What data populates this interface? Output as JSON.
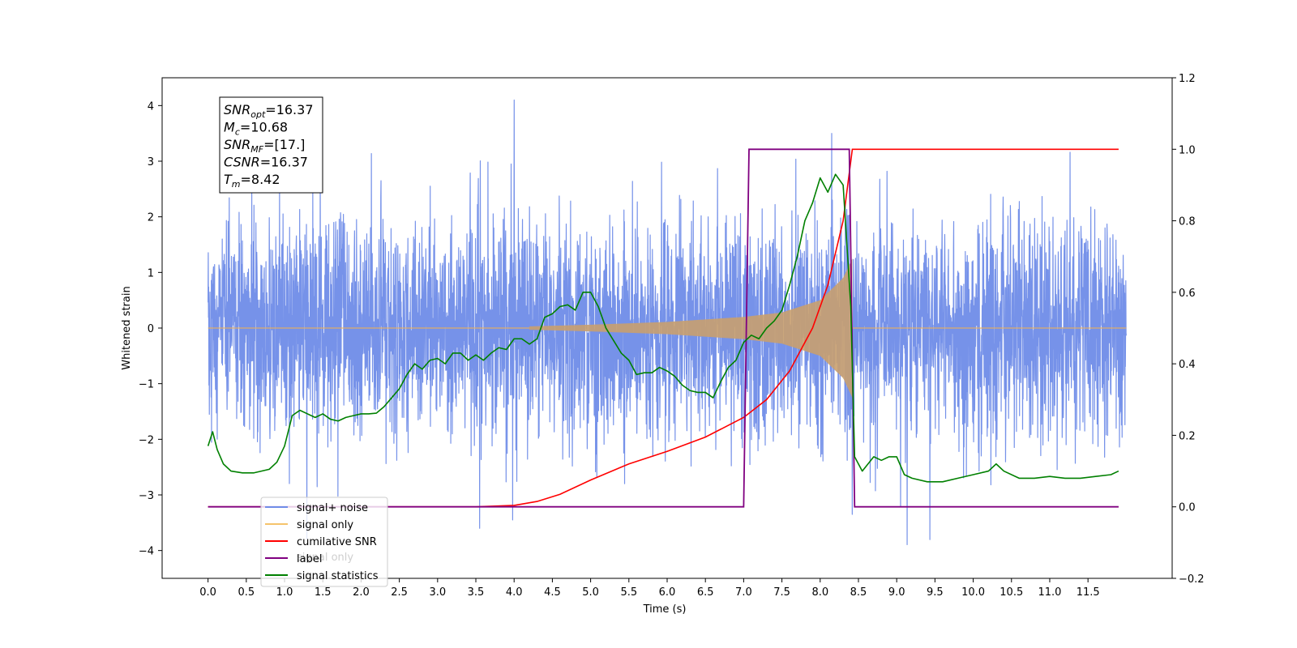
{
  "chart_data": {
    "type": "line",
    "xlabel": "Time (s)",
    "ylabel": "Whitened strain",
    "x_ticks": [
      "0.0",
      "0.5",
      "1.0",
      "1.5",
      "2.0",
      "2.5",
      "3.0",
      "3.5",
      "4.0",
      "4.5",
      "5.0",
      "5.5",
      "6.0",
      "6.5",
      "7.0",
      "7.5",
      "8.0",
      "8.5",
      "9.0",
      "9.5",
      "10.0",
      "10.5",
      "11.0",
      "11.5"
    ],
    "xlim": [
      -0.6,
      12.6
    ],
    "ylim_left": [
      -4.5,
      4.5
    ],
    "y_ticks_left": [
      "−4",
      "−3",
      "−2",
      "−1",
      "0",
      "1",
      "2",
      "3",
      "4"
    ],
    "ylim_right": [
      -0.2,
      1.2
    ],
    "y_ticks_right": [
      "−0.2",
      "0.0",
      "0.2",
      "0.4",
      "0.6",
      "0.8",
      "1.0",
      "1.2"
    ],
    "grid": false,
    "legend_placement": "lower-left",
    "annotation": {
      "lines": [
        {
          "main": "SNR",
          "sub": "opt",
          "rest": "=16.37"
        },
        {
          "main": "M",
          "sub": "c",
          "rest": "=10.68"
        },
        {
          "main": "SNR",
          "sub": "MF",
          "rest": "=[17.]"
        },
        {
          "main": "CSNR",
          "sub": "",
          "rest": "=16.37"
        },
        {
          "main": "T",
          "sub": "m",
          "rest": "=8.42"
        }
      ]
    },
    "series": [
      {
        "name": "signal+ noise",
        "axis": "left",
        "color": "#6f8ce8",
        "x_range": [
          0.0,
          12.0
        ],
        "noise_std": 0.95,
        "annotated_peaks": [
          {
            "x": 4.0,
            "y": 4.1
          },
          {
            "x": 8.15,
            "y": 3.5
          },
          {
            "x": 3.55,
            "y": -3.6
          },
          {
            "x": 3.98,
            "y": -3.45
          },
          {
            "x": 8.42,
            "y": -3.35
          },
          {
            "x": 9.05,
            "y": -3.2
          }
        ]
      },
      {
        "name": "signal only",
        "axis": "left",
        "color": "#f5c36c",
        "x_range": [
          0.0,
          12.0
        ],
        "chirp_start": 4.2,
        "chirp_end": 8.42,
        "amplitude_points": [
          [
            4.2,
            0.03
          ],
          [
            5.0,
            0.06
          ],
          [
            6.0,
            0.11
          ],
          [
            7.0,
            0.2
          ],
          [
            7.5,
            0.28
          ],
          [
            8.0,
            0.5
          ],
          [
            8.3,
            0.9
          ],
          [
            8.42,
            1.25
          ]
        ]
      },
      {
        "name": "cumilative SNR",
        "axis": "right",
        "color": "#ff0000",
        "x": [
          0.0,
          3.0,
          3.5,
          4.0,
          4.3,
          4.6,
          5.0,
          5.5,
          6.0,
          6.5,
          7.0,
          7.3,
          7.6,
          7.9,
          8.1,
          8.3,
          8.42,
          8.42,
          11.9
        ],
        "y": [
          0.0,
          0.0,
          0.0,
          0.004,
          0.015,
          0.035,
          0.075,
          0.12,
          0.155,
          0.195,
          0.25,
          0.3,
          0.38,
          0.5,
          0.62,
          0.8,
          1.0,
          1.0,
          1.0
        ]
      },
      {
        "name": "label",
        "axis": "right",
        "color": "#800080",
        "x": [
          0.0,
          7.0,
          7.07,
          8.38,
          8.45,
          11.9
        ],
        "y": [
          0.0,
          0.0,
          1.0,
          1.0,
          0.0,
          0.0
        ]
      },
      {
        "name": "signal statistics",
        "axis": "right",
        "color": "#008000",
        "x": [
          0.0,
          0.06,
          0.12,
          0.2,
          0.3,
          0.45,
          0.6,
          0.8,
          0.9,
          1.0,
          1.1,
          1.2,
          1.3,
          1.4,
          1.5,
          1.6,
          1.7,
          1.8,
          1.9,
          2.0,
          2.1,
          2.2,
          2.3,
          2.4,
          2.5,
          2.6,
          2.7,
          2.8,
          2.9,
          3.0,
          3.1,
          3.2,
          3.3,
          3.4,
          3.5,
          3.6,
          3.7,
          3.8,
          3.9,
          4.0,
          4.1,
          4.2,
          4.3,
          4.4,
          4.5,
          4.6,
          4.7,
          4.8,
          4.9,
          5.0,
          5.1,
          5.2,
          5.3,
          5.4,
          5.5,
          5.6,
          5.7,
          5.8,
          5.9,
          6.0,
          6.1,
          6.2,
          6.3,
          6.4,
          6.5,
          6.6,
          6.7,
          6.8,
          6.9,
          7.0,
          7.1,
          7.2,
          7.3,
          7.4,
          7.5,
          7.6,
          7.7,
          7.8,
          7.9,
          8.0,
          8.1,
          8.2,
          8.3,
          8.4,
          8.45,
          8.55,
          8.7,
          8.8,
          8.9,
          9.0,
          9.1,
          9.2,
          9.4,
          9.6,
          9.8,
          10.0,
          10.2,
          10.3,
          10.4,
          10.6,
          10.8,
          11.0,
          11.2,
          11.4,
          11.6,
          11.8,
          11.9
        ],
        "y": [
          0.17,
          0.21,
          0.16,
          0.12,
          0.1,
          0.095,
          0.095,
          0.105,
          0.125,
          0.17,
          0.255,
          0.27,
          0.26,
          0.25,
          0.26,
          0.245,
          0.24,
          0.25,
          0.255,
          0.26,
          0.26,
          0.262,
          0.28,
          0.305,
          0.33,
          0.37,
          0.4,
          0.385,
          0.41,
          0.415,
          0.4,
          0.43,
          0.43,
          0.41,
          0.425,
          0.41,
          0.43,
          0.445,
          0.44,
          0.47,
          0.47,
          0.455,
          0.47,
          0.53,
          0.54,
          0.56,
          0.565,
          0.55,
          0.6,
          0.6,
          0.56,
          0.5,
          0.465,
          0.43,
          0.41,
          0.37,
          0.375,
          0.375,
          0.39,
          0.38,
          0.365,
          0.34,
          0.325,
          0.32,
          0.32,
          0.305,
          0.35,
          0.39,
          0.41,
          0.46,
          0.48,
          0.47,
          0.5,
          0.52,
          0.55,
          0.62,
          0.7,
          0.8,
          0.85,
          0.92,
          0.88,
          0.93,
          0.9,
          0.56,
          0.14,
          0.1,
          0.14,
          0.13,
          0.14,
          0.14,
          0.09,
          0.08,
          0.07,
          0.07,
          0.08,
          0.09,
          0.1,
          0.12,
          0.1,
          0.08,
          0.08,
          0.085,
          0.08,
          0.08,
          0.085,
          0.09,
          0.1
        ]
      }
    ],
    "legend_ghost_text": "signal only"
  }
}
